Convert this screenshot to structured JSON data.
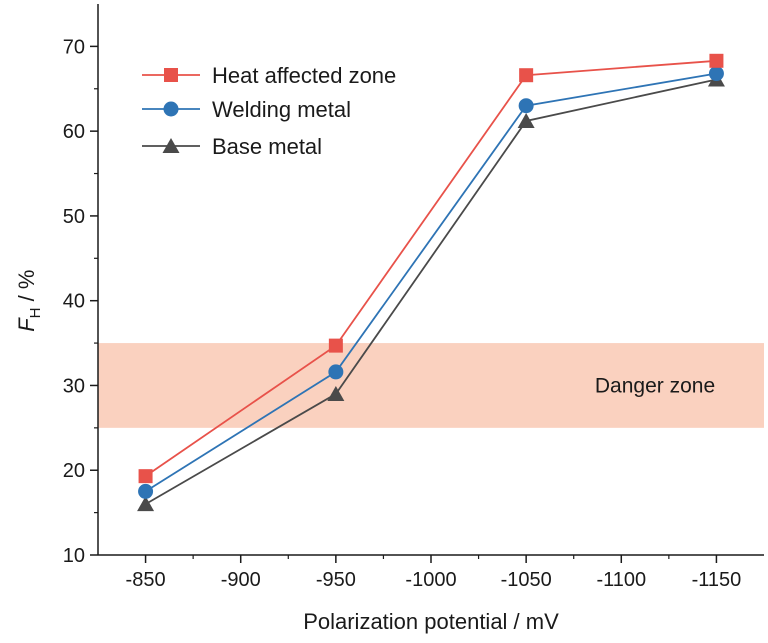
{
  "chart_data": {
    "type": "line",
    "xlabel": "Polarization potential / mV",
    "ylabel_main": "F",
    "ylabel_sub": "H",
    "ylabel_unit": " / %",
    "categories": [
      "-850",
      "-900",
      "-950",
      "-1000",
      "-1050",
      "-1100",
      "-1150"
    ],
    "x": [
      -850,
      -950,
      -1050,
      -1150
    ],
    "xlim": [
      -825,
      -1175
    ],
    "ylim": [
      10,
      75
    ],
    "yticks": [
      10,
      20,
      30,
      40,
      50,
      60,
      70
    ],
    "grid": false,
    "legend_position": "top-left",
    "series": [
      {
        "name": "Heat affected zone",
        "marker": "square",
        "color": "#e8524a",
        "values": [
          19.3,
          34.7,
          66.6,
          68.3
        ]
      },
      {
        "name": "Welding metal",
        "marker": "circle",
        "color": "#2e74b5",
        "values": [
          17.5,
          31.6,
          63.0,
          66.8
        ]
      },
      {
        "name": "Base metal",
        "marker": "triangle",
        "color": "#4a4a4a",
        "values": [
          16.0,
          29.0,
          61.2,
          66.1
        ]
      }
    ],
    "band": {
      "label": "Danger zone",
      "y_min": 25,
      "y_max": 35,
      "color": "#f9c9b4"
    }
  }
}
